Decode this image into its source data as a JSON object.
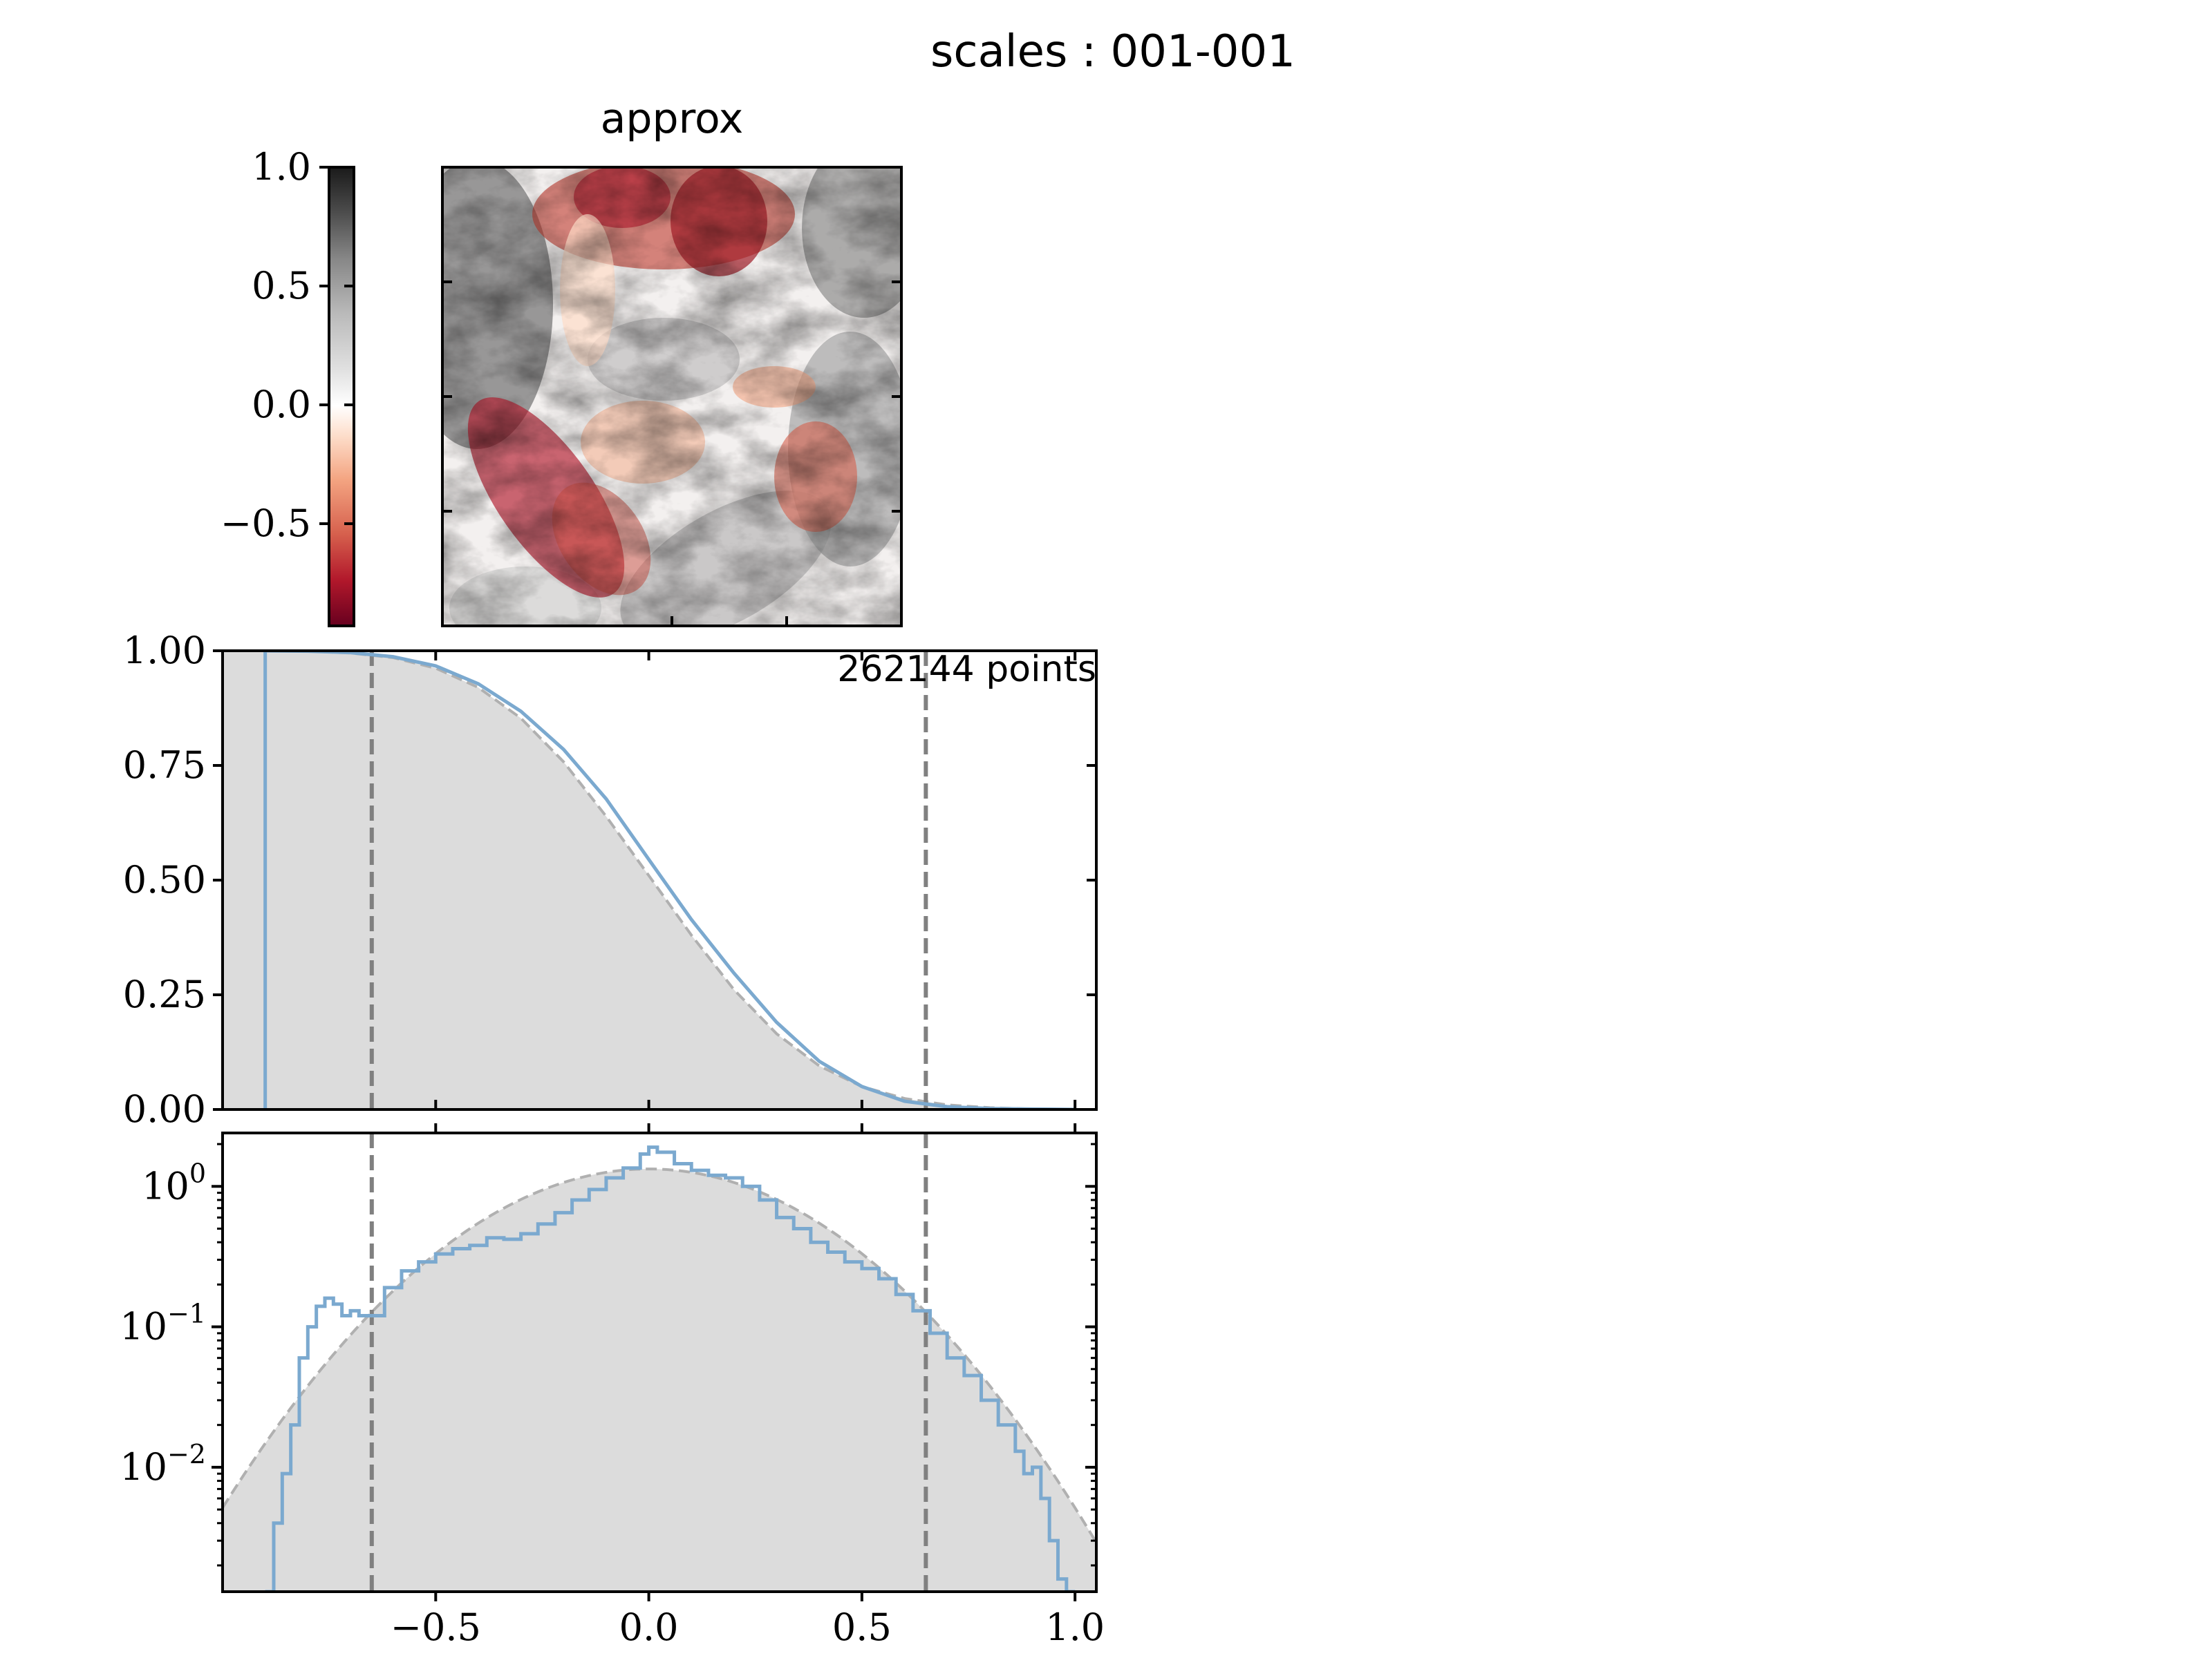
{
  "title": "scales : 001-001",
  "colors": {
    "cdf_line": "#7ba9cf",
    "pdf_line": "#7ba9cf",
    "fill": "#dcdcdc",
    "gaussian": "#b0b0b0",
    "vline": "#808080",
    "colormap": [
      "#67001f",
      "#b2182b",
      "#d6604d",
      "#f4a582",
      "#fddbc7",
      "#ffffff",
      "#e0e0e0",
      "#bababa",
      "#878787",
      "#4d4d4d",
      "#1a1a1a"
    ]
  },
  "colorbar": {
    "ticks": [
      1.0,
      0.5,
      0.0,
      -0.5
    ],
    "tick_labels": [
      "1.0",
      "0.5",
      "0.0",
      "−0.5"
    ],
    "range": [
      -0.93,
      1.0
    ]
  },
  "image_panel": {
    "title": "approx"
  },
  "chart_data": [
    {
      "type": "line",
      "title": "",
      "annotation": "262144 points",
      "xlim": [
        -1.0,
        1.05
      ],
      "ylim": [
        0.0,
        1.0
      ],
      "ytick_labels": [
        "1.00",
        "0.75",
        "0.50",
        "0.25",
        "0.00"
      ],
      "yticks": [
        1.0,
        0.75,
        0.5,
        0.25,
        0.0
      ],
      "xticks": [
        -0.5,
        0.0,
        0.5,
        1.0
      ],
      "vlines": [
        -0.65,
        0.65
      ],
      "series": [
        {
          "x": [
            -0.9,
            -0.8,
            -0.7,
            -0.6,
            -0.5,
            -0.4,
            -0.3,
            -0.2,
            -0.1,
            0.0,
            0.1,
            0.2,
            0.3,
            0.4,
            0.5,
            0.6,
            0.7,
            0.8,
            0.9,
            1.0
          ],
          "values": [
            1.0,
            0.999,
            0.996,
            0.987,
            0.967,
            0.928,
            0.868,
            0.785,
            0.677,
            0.545,
            0.414,
            0.297,
            0.19,
            0.105,
            0.05,
            0.018,
            0.006,
            0.002,
            0.001,
            0.0
          ]
        }
      ],
      "gaussian": {
        "x": [
          -1.0,
          -0.9,
          -0.8,
          -0.7,
          -0.6,
          -0.5,
          -0.4,
          -0.3,
          -0.2,
          -0.1,
          0.0,
          0.1,
          0.2,
          0.3,
          0.4,
          0.5,
          0.6,
          0.7,
          0.8,
          0.9,
          1.0,
          1.05
        ],
        "values": [
          1.0,
          1.0,
          0.999,
          0.995,
          0.985,
          0.962,
          0.92,
          0.853,
          0.758,
          0.639,
          0.51,
          0.38,
          0.261,
          0.165,
          0.095,
          0.05,
          0.024,
          0.01,
          0.004,
          0.001,
          0.0,
          0.0
        ]
      },
      "cdf_spike_x": -0.9
    },
    {
      "type": "line",
      "title": "",
      "yscale": "log",
      "xlim": [
        -1.0,
        1.05
      ],
      "ylim": [
        0.0013,
        2.4
      ],
      "ytick_labels": [
        "10^0",
        "10^−1",
        "10^−2"
      ],
      "yticks": [
        1,
        0.1,
        0.01
      ],
      "xticks": [
        -0.5,
        0.0,
        0.5,
        1.0
      ],
      "xtick_labels": [
        "−0.5",
        "0.0",
        "0.5",
        "1.0"
      ],
      "vlines": [
        -0.65,
        0.65
      ],
      "series": [
        {
          "x": [
            -0.9,
            -0.88,
            -0.86,
            -0.84,
            -0.82,
            -0.8,
            -0.78,
            -0.76,
            -0.74,
            -0.72,
            -0.7,
            -0.68,
            -0.66,
            -0.62,
            -0.58,
            -0.54,
            -0.5,
            -0.46,
            -0.42,
            -0.38,
            -0.34,
            -0.3,
            -0.26,
            -0.22,
            -0.18,
            -0.14,
            -0.1,
            -0.06,
            -0.02,
            0.0,
            0.02,
            0.06,
            0.1,
            0.14,
            0.18,
            0.22,
            0.26,
            0.3,
            0.34,
            0.38,
            0.42,
            0.46,
            0.5,
            0.54,
            0.58,
            0.62,
            0.66,
            0.7,
            0.74,
            0.78,
            0.82,
            0.86,
            0.88,
            0.9,
            0.92,
            0.94,
            0.96,
            0.98
          ],
          "values": [
            0.0013,
            0.004,
            0.009,
            0.02,
            0.06,
            0.1,
            0.14,
            0.16,
            0.145,
            0.12,
            0.13,
            0.12,
            0.12,
            0.19,
            0.25,
            0.29,
            0.33,
            0.36,
            0.38,
            0.43,
            0.42,
            0.46,
            0.54,
            0.65,
            0.8,
            0.95,
            1.15,
            1.35,
            1.7,
            1.9,
            1.75,
            1.45,
            1.3,
            1.2,
            1.15,
            1.0,
            0.8,
            0.6,
            0.5,
            0.4,
            0.34,
            0.29,
            0.26,
            0.22,
            0.17,
            0.13,
            0.09,
            0.06,
            0.045,
            0.03,
            0.02,
            0.013,
            0.009,
            0.01,
            0.006,
            0.003,
            0.0016,
            0.0013
          ]
        }
      ],
      "gaussian": {
        "mean": 0.0,
        "std": 0.3,
        "peak": 1.33
      }
    }
  ]
}
